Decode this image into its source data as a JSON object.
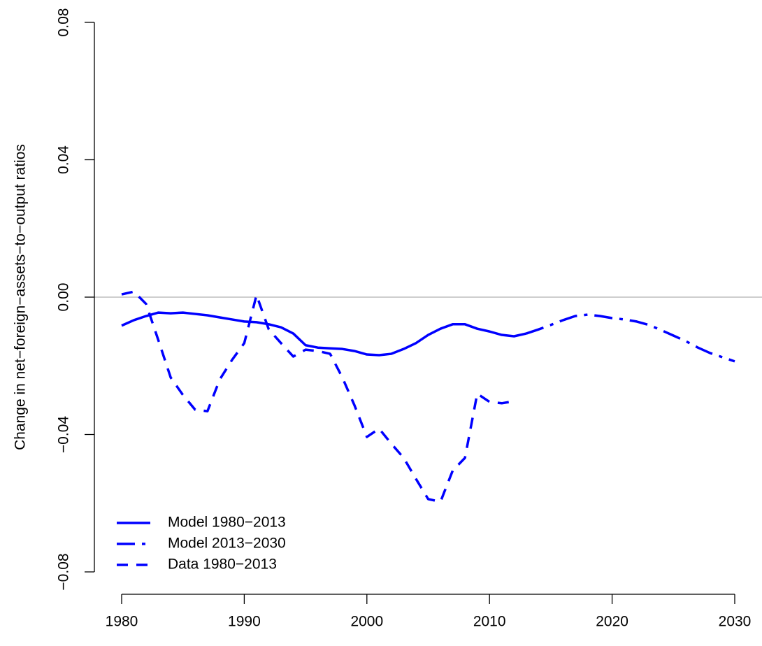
{
  "chart_data": {
    "type": "line",
    "y_label": "Change in net−foreign−assets−to−output ratios",
    "xlim": [
      1980,
      2030
    ],
    "xticks": [
      1980,
      1990,
      2000,
      2010,
      2020,
      2030
    ],
    "ylim": [
      -0.08,
      0.08
    ],
    "yticks": [
      {
        "value": -0.08,
        "label": "−0.08"
      },
      {
        "value": -0.04,
        "label": "−0.04"
      },
      {
        "value": 0,
        "label": "0.00"
      },
      0.04,
      0.08
    ],
    "reference_line": 0,
    "reference_color": "#bebebe",
    "legend": "bottom-left",
    "series": [
      {
        "name": "Model 1980−2013",
        "color": "#0000ff",
        "dash": "solid",
        "x": [
          1980,
          1981,
          1982,
          1983,
          1984,
          1985,
          1986,
          1987,
          1988,
          1989,
          1990,
          1991,
          1992,
          1993,
          1994,
          1995,
          1996,
          1997,
          1998,
          1999,
          2000,
          2001,
          2002,
          2003,
          2004,
          2005,
          2006,
          2007,
          2008,
          2009,
          2010,
          2011,
          2012,
          2013
        ],
        "values": [
          -0.0083,
          -0.0067,
          -0.0055,
          -0.0045,
          -0.0047,
          -0.0045,
          -0.0049,
          -0.0053,
          -0.0059,
          -0.0065,
          -0.0071,
          -0.0073,
          -0.0079,
          -0.0088,
          -0.0106,
          -0.014,
          -0.0147,
          -0.0149,
          -0.0151,
          -0.0157,
          -0.0167,
          -0.0169,
          -0.0165,
          -0.0151,
          -0.0134,
          -0.011,
          -0.0092,
          -0.0079,
          -0.0079,
          -0.0092,
          -0.01,
          -0.011,
          -0.0114,
          -0.0106
        ]
      },
      {
        "name": "Model 2013−2030",
        "color": "#0000ff",
        "dash": "dashdot",
        "x": [
          2013,
          2014,
          2015,
          2016,
          2017,
          2018,
          2019,
          2020,
          2021,
          2022,
          2023,
          2024,
          2025,
          2026,
          2027,
          2028,
          2029,
          2030
        ],
        "values": [
          -0.0106,
          -0.0094,
          -0.0081,
          -0.0067,
          -0.0055,
          -0.0051,
          -0.0055,
          -0.0061,
          -0.0065,
          -0.0071,
          -0.0081,
          -0.0096,
          -0.0112,
          -0.0128,
          -0.0147,
          -0.0163,
          -0.0175,
          -0.0187
        ]
      },
      {
        "name": "Data 1980−2013",
        "color": "#0000ff",
        "dash": "dashed",
        "x": [
          1980,
          1981,
          1982,
          1983,
          1984,
          1985,
          1986,
          1987,
          1988,
          1989,
          1990,
          1991,
          1992,
          1993,
          1994,
          1995,
          1996,
          1997,
          1998,
          1999,
          2000,
          2001,
          2002,
          2003,
          2004,
          2005,
          2006,
          2007,
          2008,
          2009,
          2010,
          2011,
          2012
        ],
        "values": [
          0.0008,
          0.0016,
          -0.002,
          -0.0126,
          -0.0234,
          -0.0285,
          -0.0328,
          -0.0332,
          -0.024,
          -0.0183,
          -0.0134,
          0.0006,
          -0.0094,
          -0.0134,
          -0.0173,
          -0.0153,
          -0.0157,
          -0.0165,
          -0.0234,
          -0.0316,
          -0.0407,
          -0.0383,
          -0.0427,
          -0.0468,
          -0.0529,
          -0.0588,
          -0.0596,
          -0.0505,
          -0.0468,
          -0.0281,
          -0.0305,
          -0.0309,
          -0.0303
        ]
      }
    ]
  }
}
